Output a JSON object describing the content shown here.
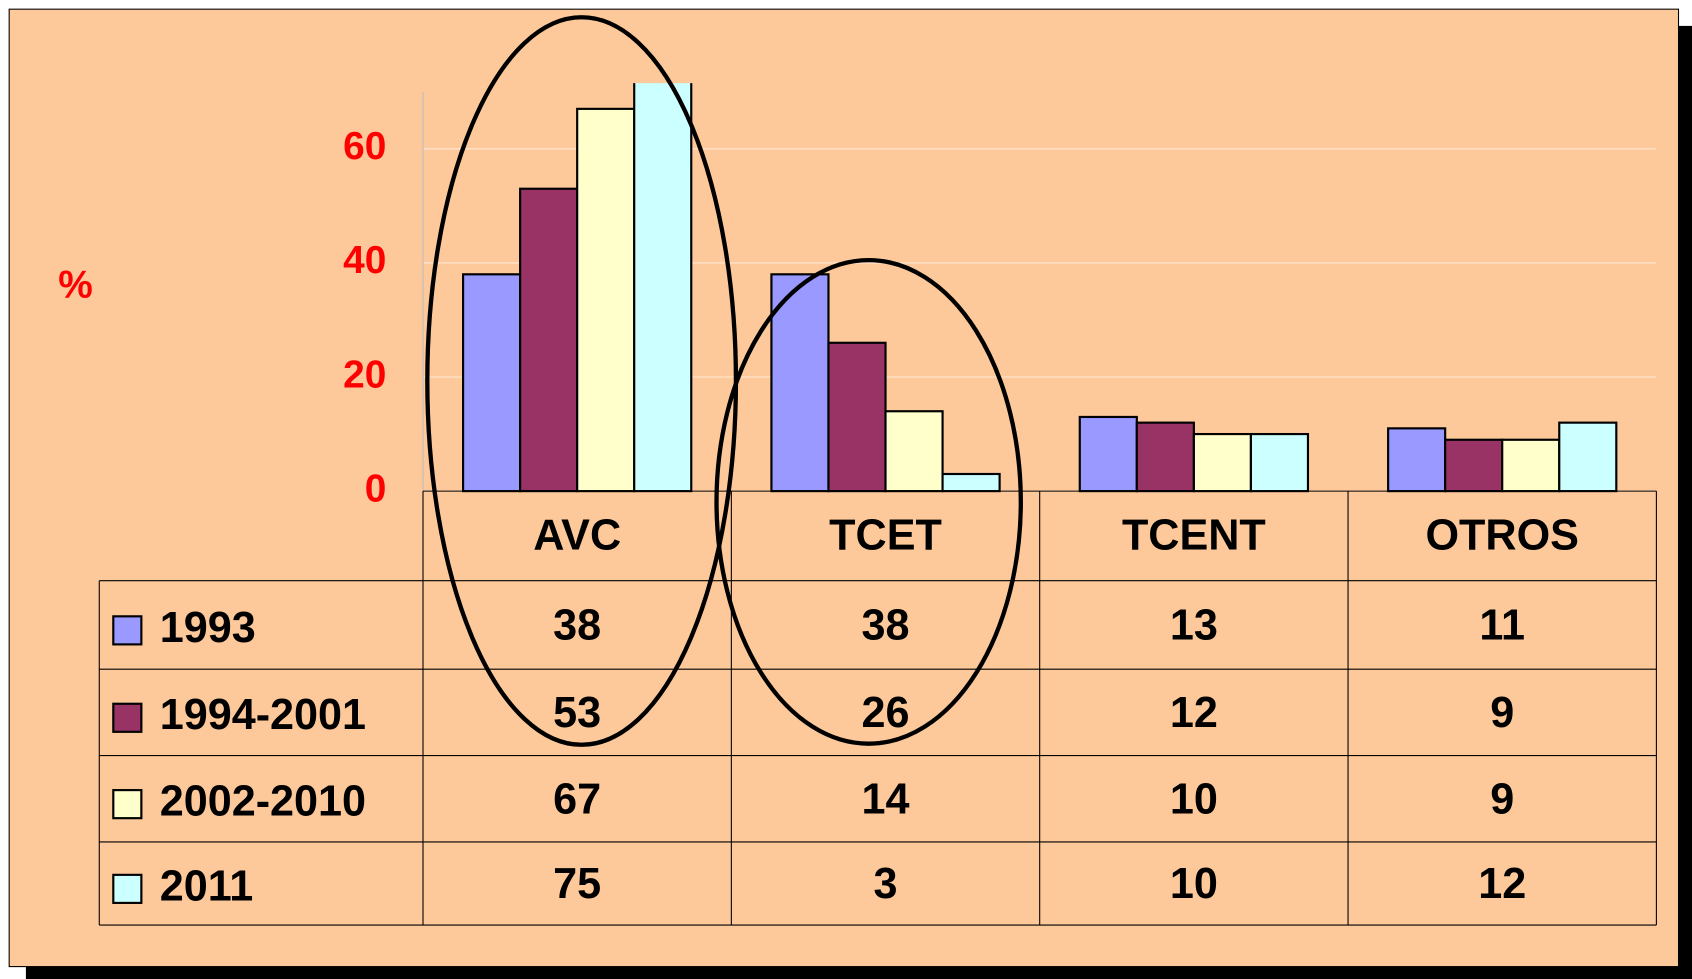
{
  "chart_data": {
    "type": "bar",
    "y_label": "%",
    "categories": [
      "AVC",
      "TCET",
      "TCENT",
      "OTROS"
    ],
    "series": [
      {
        "name": "1993",
        "color": "#9999ff",
        "values": [
          38,
          38,
          13,
          11
        ]
      },
      {
        "name": "1994-2001",
        "color": "#993366",
        "values": [
          53,
          26,
          12,
          9
        ]
      },
      {
        "name": "2002-2010",
        "color": "#ffffcc",
        "values": [
          67,
          14,
          10,
          9
        ]
      },
      {
        "name": "2011",
        "color": "#ccffff",
        "values": [
          75,
          3,
          10,
          12
        ]
      }
    ],
    "ylim": [
      0,
      70
    ],
    "yticks": [
      0,
      20,
      40,
      60
    ],
    "grid": true,
    "data_table": true
  }
}
